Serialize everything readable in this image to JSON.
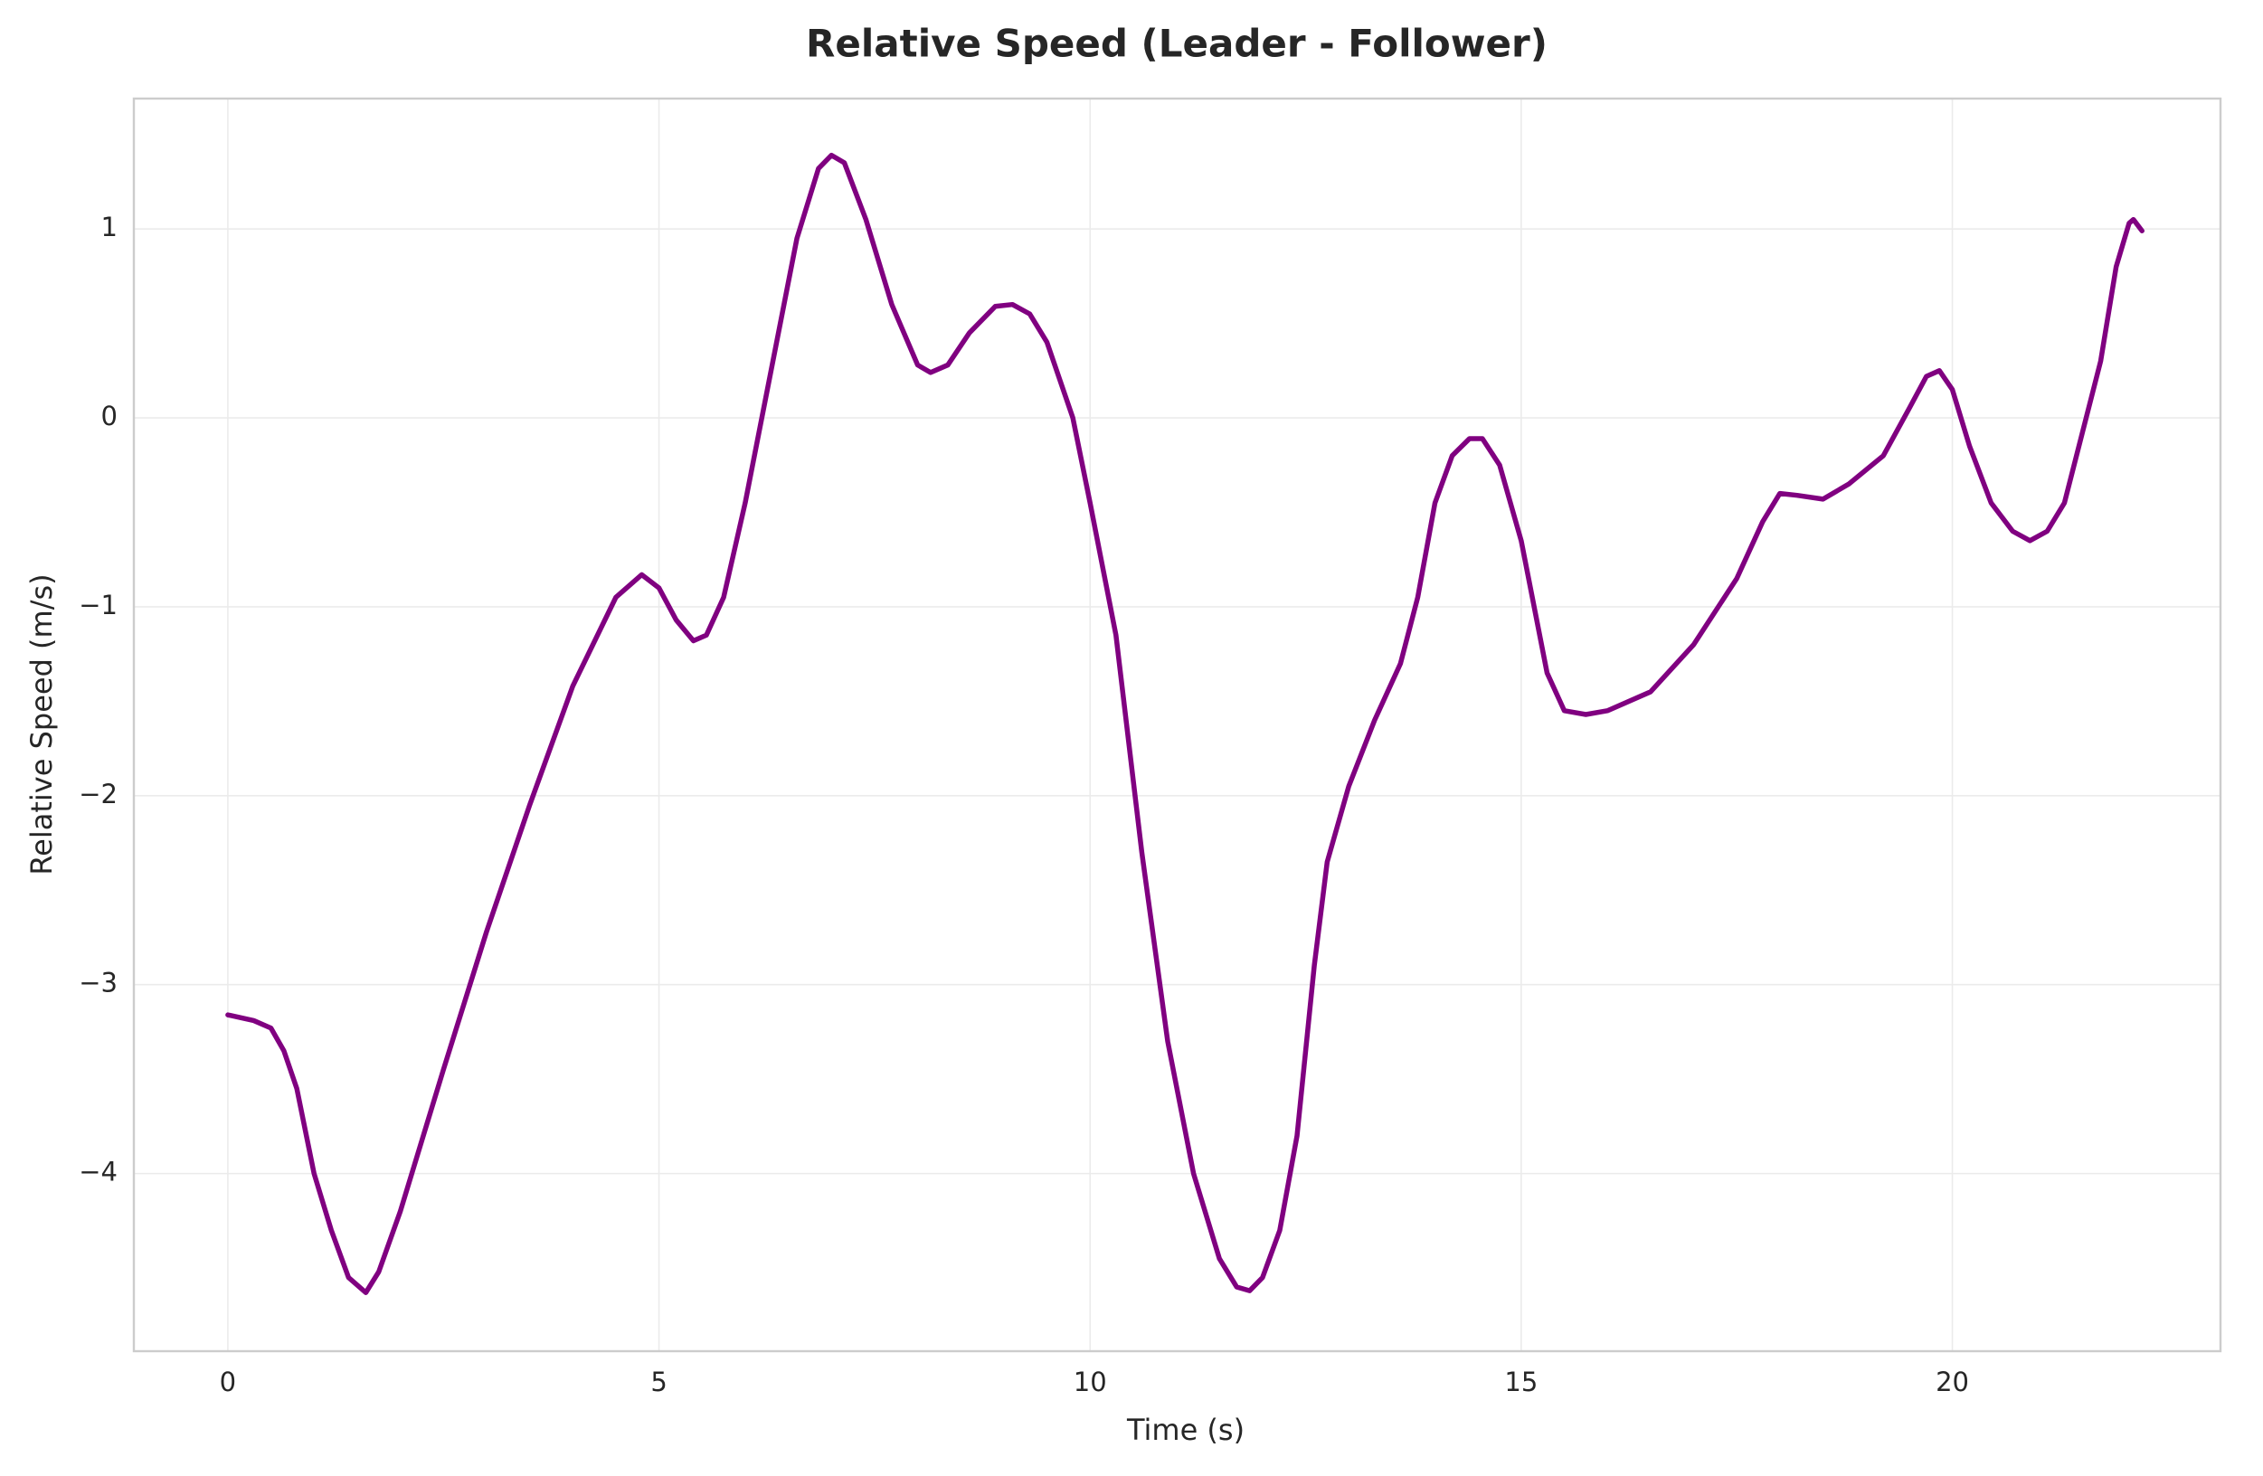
{
  "chart_data": {
    "type": "line",
    "title": "Relative Speed (Leader - Follower)",
    "x_label": "Time (s)",
    "y_label": "Relative Speed (m/s)",
    "x": [
      0,
      0.3,
      0.5,
      0.65,
      0.8,
      1.0,
      1.2,
      1.4,
      1.6,
      1.75,
      2.0,
      2.5,
      3.0,
      3.5,
      4.0,
      4.5,
      4.8,
      5.0,
      5.2,
      5.4,
      5.55,
      5.75,
      6.0,
      6.3,
      6.6,
      6.85,
      7.0,
      7.15,
      7.4,
      7.7,
      8.0,
      8.15,
      8.35,
      8.6,
      8.9,
      9.1,
      9.3,
      9.5,
      9.8,
      10.0,
      10.3,
      10.6,
      10.9,
      11.2,
      11.5,
      11.7,
      11.85,
      12.0,
      12.2,
      12.4,
      12.6,
      12.75,
      13.0,
      13.3,
      13.6,
      13.8,
      14.0,
      14.2,
      14.4,
      14.55,
      14.75,
      15.0,
      15.3,
      15.5,
      15.75,
      16.0,
      16.5,
      17.0,
      17.5,
      17.8,
      18.0,
      18.2,
      18.5,
      18.8,
      19.2,
      19.5,
      19.7,
      19.85,
      20.0,
      20.2,
      20.45,
      20.7,
      20.9,
      21.1,
      21.3,
      21.44,
      21.72,
      21.9,
      22.05,
      22.1,
      22.2
    ],
    "series": [
      {
        "name": "Relative Speed",
        "color": "#800080",
        "values": [
          -3.16,
          -3.19,
          -3.23,
          -3.35,
          -3.55,
          -4.0,
          -4.3,
          -4.55,
          -4.63,
          -4.52,
          -4.2,
          -3.45,
          -2.72,
          -2.05,
          -1.42,
          -0.95,
          -0.83,
          -0.9,
          -1.07,
          -1.18,
          -1.15,
          -0.95,
          -0.45,
          0.25,
          0.95,
          1.32,
          1.39,
          1.35,
          1.05,
          0.6,
          0.28,
          0.24,
          0.28,
          0.45,
          0.59,
          0.6,
          0.55,
          0.4,
          0.0,
          -0.45,
          -1.15,
          -2.3,
          -3.3,
          -4.0,
          -4.45,
          -4.6,
          -4.62,
          -4.55,
          -4.3,
          -3.8,
          -2.9,
          -2.35,
          -1.95,
          -1.6,
          -1.3,
          -0.95,
          -0.45,
          -0.2,
          -0.11,
          -0.11,
          -0.25,
          -0.65,
          -1.35,
          -1.55,
          -1.57,
          -1.55,
          -1.45,
          -1.2,
          -0.85,
          -0.55,
          -0.4,
          -0.41,
          -0.43,
          -0.35,
          -0.2,
          0.05,
          0.22,
          0.25,
          0.15,
          -0.15,
          -0.45,
          -0.6,
          -0.65,
          -0.6,
          -0.45,
          -0.2,
          0.3,
          0.8,
          1.03,
          1.05,
          0.99
        ]
      }
    ],
    "xlim": [
      -1.09,
      23.11
    ],
    "ylim": [
      -4.94,
      1.69
    ],
    "xticks": [
      0,
      5,
      10,
      15,
      20
    ],
    "yticks": [
      {
        "value": -4,
        "label": "−4"
      },
      {
        "value": -3,
        "label": "−3"
      },
      {
        "value": -2,
        "label": "−2"
      },
      {
        "value": -1,
        "label": "−1"
      },
      0,
      1
    ],
    "grid": true
  }
}
